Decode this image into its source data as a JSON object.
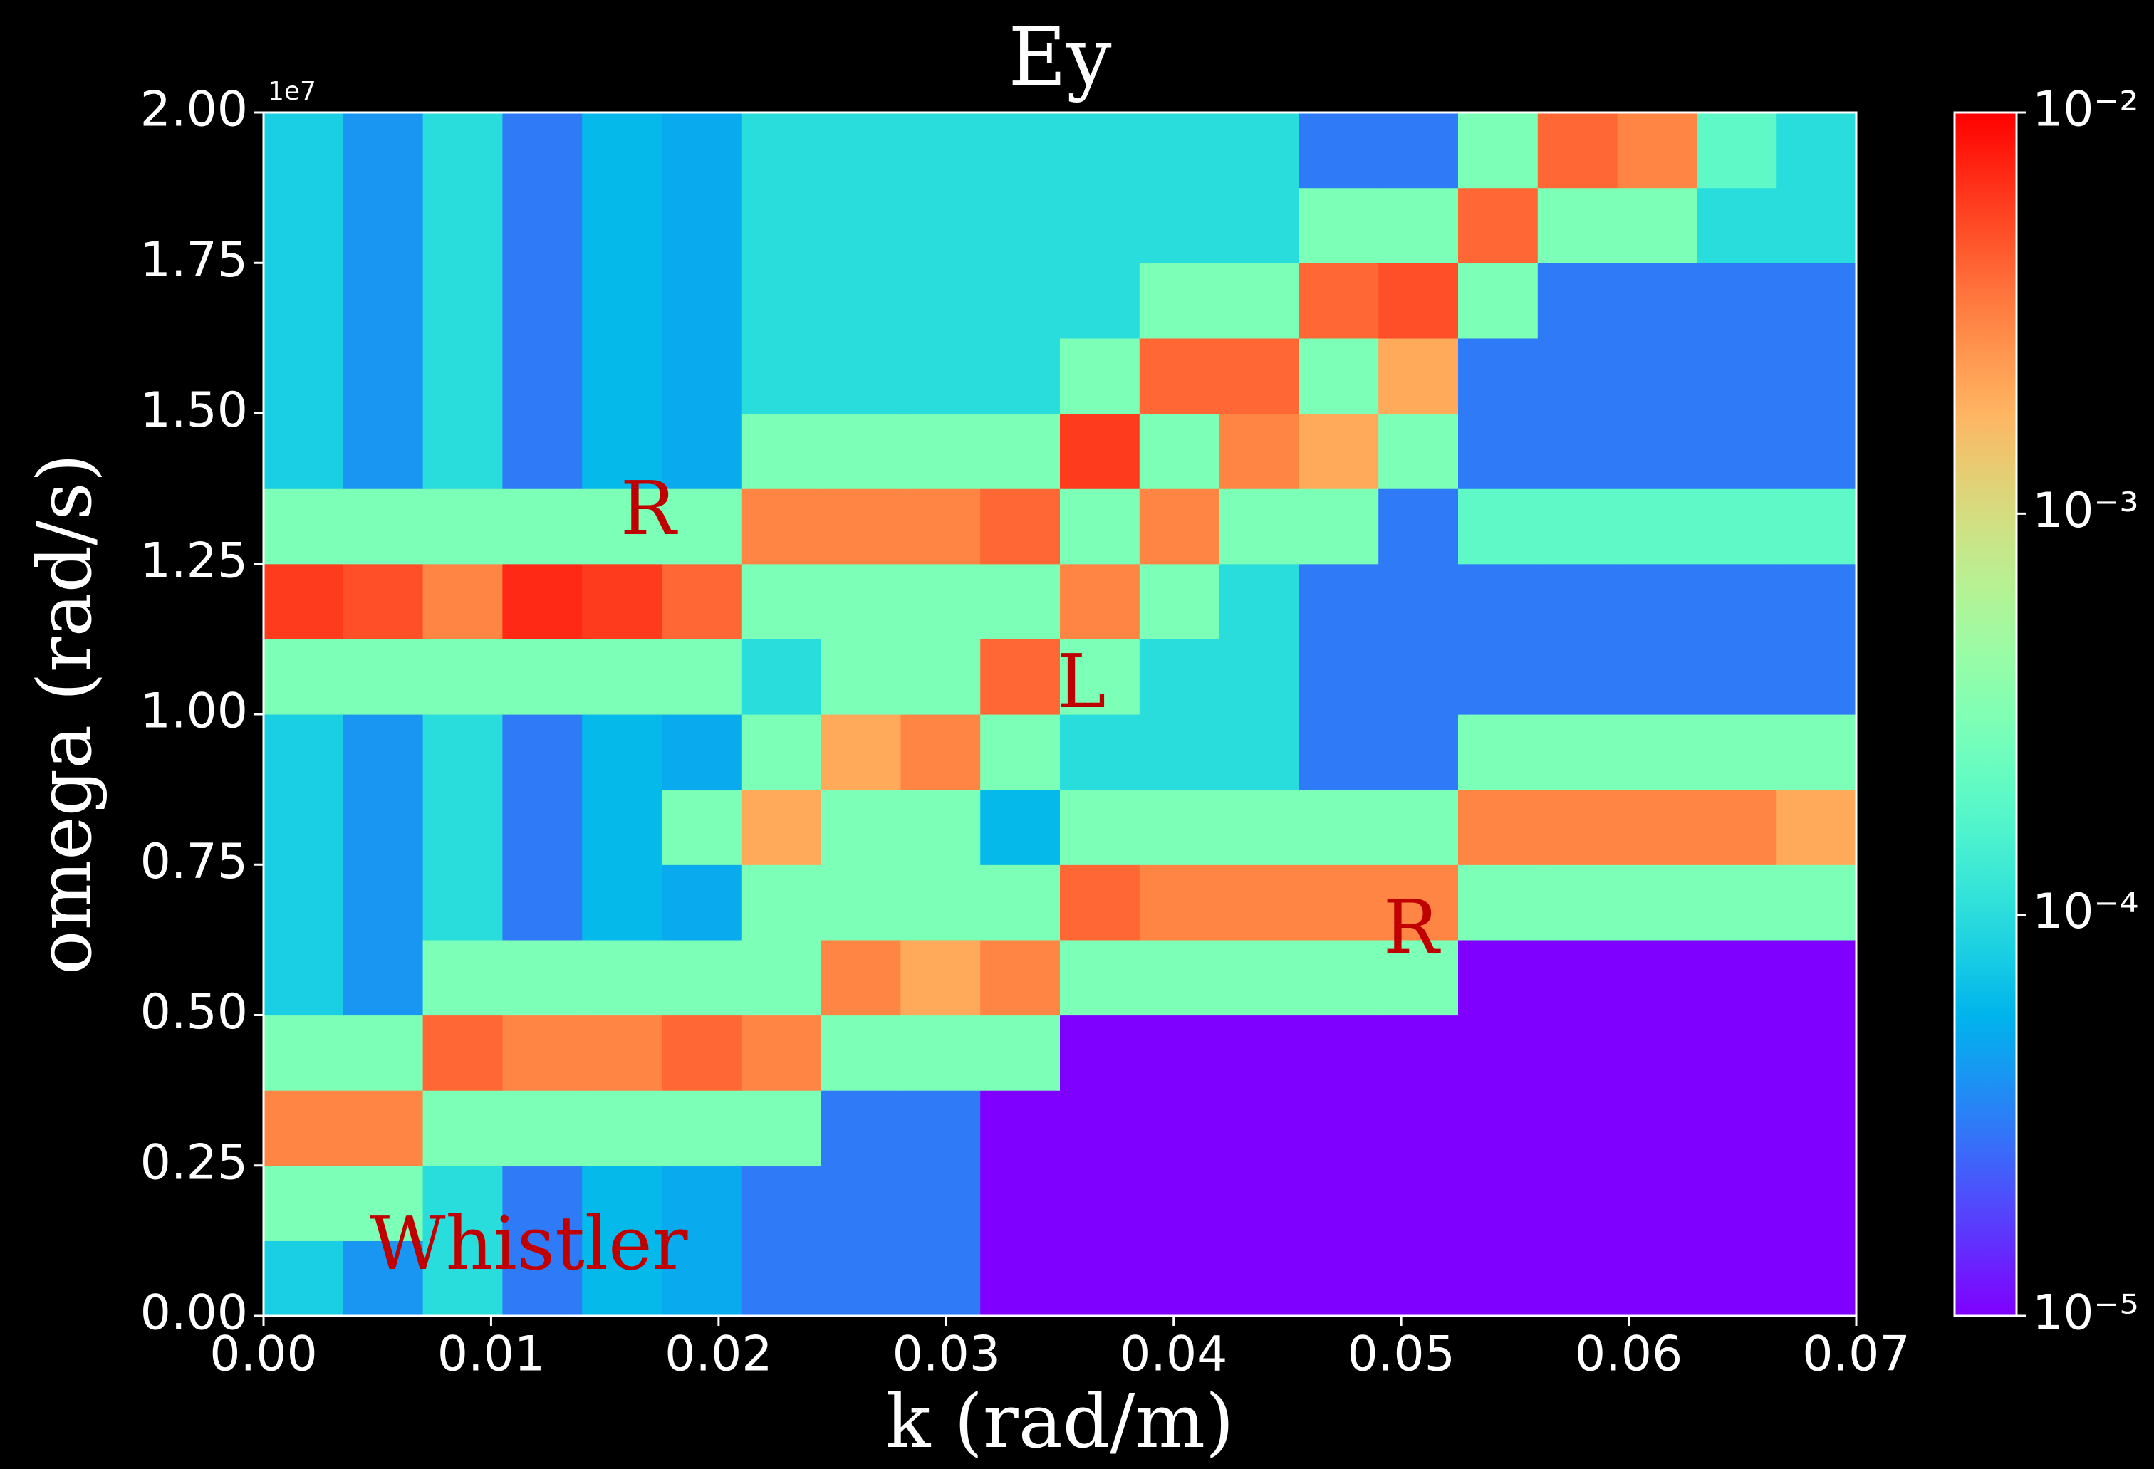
{
  "chart_data": {
    "type": "heatmap",
    "title": "Ey",
    "xlabel": "k (rad/m)",
    "ylabel": "omega (rad/s)",
    "y_offset_label": "1e7",
    "xlim": [
      0,
      0.07
    ],
    "ylim": [
      0,
      20000000
    ],
    "xticks": [
      {
        "value": 0,
        "label": "0.00"
      },
      0.01,
      0.02,
      0.03,
      0.04,
      0.05,
      0.06,
      0.07
    ],
    "yticks": [
      {
        "value": 0,
        "label": "0.00"
      },
      {
        "value": 2500000,
        "label": "0.25"
      },
      {
        "value": 5000000,
        "label": "0.50"
      },
      {
        "value": 7500000,
        "label": "0.75"
      },
      {
        "value": 10000000,
        "label": "1.00"
      },
      {
        "value": 12500000,
        "label": "1.25"
      },
      {
        "value": 15000000,
        "label": "1.50"
      },
      {
        "value": 17500000,
        "label": "1.75"
      },
      {
        "value": 20000000,
        "label": "2.00"
      }
    ],
    "colormap": "rainbow",
    "color_scale": "log",
    "clim": [
      1e-05,
      0.01
    ],
    "cticks": [
      {
        "value": 1e-05,
        "label": "10⁻⁵"
      },
      {
        "value": 0.0001,
        "label": "10⁻⁴"
      },
      {
        "value": 0.001,
        "label": "10⁻³"
      },
      {
        "value": 0.01,
        "label": "10⁻²"
      }
    ],
    "annotations": [
      "R",
      "L",
      "R",
      "Whistler"
    ],
    "annotation_color": "#c00000",
    "x_edges": [
      0,
      0.0035,
      0.007,
      0.0105,
      0.014,
      0.0175,
      0.021,
      0.0245,
      0.028,
      0.0315,
      0.035,
      0.0385,
      0.042,
      0.0455,
      0.049,
      0.0525,
      0.056,
      0.0595,
      0.063,
      0.0665,
      0.07
    ],
    "y_edges": [
      0,
      1250000,
      2500000,
      3750000,
      5000000,
      6250000,
      7500000,
      8750000,
      10000000,
      11250000,
      12500000,
      13750000,
      15000000,
      16250000,
      17500000,
      18750000,
      20000000
    ],
    "z": [
      [
        8e-05,
        4e-05,
        0.0001,
        3e-05,
        6e-05,
        5e-05,
        3e-05,
        3e-05,
        3e-05,
        1e-05,
        1e-05,
        1e-05,
        1e-05,
        1e-05,
        1e-05,
        1e-05,
        1e-05,
        1e-05,
        1e-05,
        1e-05
      ],
      [
        0.0003,
        0.0003,
        0.0001,
        3e-05,
        6e-05,
        5e-05,
        3e-05,
        3e-05,
        3e-05,
        1e-05,
        1e-05,
        1e-05,
        1e-05,
        1e-05,
        1e-05,
        1e-05,
        1e-05,
        1e-05,
        1e-05,
        1e-05
      ],
      [
        0.003,
        0.003,
        0.0003,
        0.0003,
        0.0003,
        0.0003,
        0.0003,
        3e-05,
        3e-05,
        1e-05,
        1e-05,
        1e-05,
        1e-05,
        1e-05,
        1e-05,
        1e-05,
        1e-05,
        1e-05,
        1e-05,
        1e-05
      ],
      [
        0.0003,
        0.0003,
        0.004,
        0.003,
        0.003,
        0.004,
        0.003,
        0.0003,
        0.0003,
        0.0003,
        1e-05,
        1e-05,
        1e-05,
        1e-05,
        1e-05,
        1e-05,
        1e-05,
        1e-05,
        1e-05,
        1e-05
      ],
      [
        8e-05,
        4e-05,
        0.0003,
        0.0003,
        0.0003,
        0.0003,
        0.0003,
        0.003,
        0.002,
        0.003,
        0.0003,
        0.0003,
        0.0003,
        0.0003,
        0.0003,
        1e-05,
        1e-05,
        1e-05,
        1e-05,
        1e-05
      ],
      [
        8e-05,
        4e-05,
        0.0001,
        3e-05,
        6e-05,
        5e-05,
        0.0003,
        0.0003,
        0.0003,
        0.0003,
        0.004,
        0.003,
        0.003,
        0.003,
        0.003,
        0.0003,
        0.0003,
        0.0003,
        0.0003,
        0.0003
      ],
      [
        8e-05,
        4e-05,
        0.0001,
        3e-05,
        6e-05,
        0.0003,
        0.002,
        0.0003,
        0.0003,
        6e-05,
        0.0003,
        0.0003,
        0.0003,
        0.0003,
        0.0003,
        0.003,
        0.003,
        0.003,
        0.003,
        0.002
      ],
      [
        8e-05,
        4e-05,
        0.0001,
        3e-05,
        6e-05,
        5e-05,
        0.0003,
        0.002,
        0.003,
        0.0003,
        0.0001,
        0.0001,
        0.0001,
        3e-05,
        3e-05,
        0.0003,
        0.0003,
        0.0003,
        0.0003,
        0.0003
      ],
      [
        0.0003,
        0.0003,
        0.0003,
        0.0003,
        0.0003,
        0.0003,
        0.0001,
        0.0003,
        0.0003,
        0.004,
        0.0003,
        0.0001,
        0.0001,
        3e-05,
        3e-05,
        3e-05,
        3e-05,
        3e-05,
        3e-05,
        3e-05
      ],
      [
        0.006,
        0.005,
        0.003,
        0.007,
        0.006,
        0.004,
        0.0003,
        0.0003,
        0.0003,
        0.0003,
        0.003,
        0.0003,
        0.0001,
        3e-05,
        3e-05,
        3e-05,
        3e-05,
        3e-05,
        3e-05,
        3e-05
      ],
      [
        0.0003,
        0.0003,
        0.0003,
        0.0003,
        0.0003,
        0.0003,
        0.003,
        0.003,
        0.003,
        0.004,
        0.0003,
        0.003,
        0.0003,
        0.0003,
        3e-05,
        0.0002,
        0.0002,
        0.0002,
        0.0002,
        0.0002
      ],
      [
        8e-05,
        4e-05,
        0.0001,
        3e-05,
        6e-05,
        5e-05,
        0.0003,
        0.0003,
        0.0003,
        0.0003,
        0.006,
        0.0003,
        0.003,
        0.002,
        0.0003,
        3e-05,
        3e-05,
        3e-05,
        3e-05,
        3e-05
      ],
      [
        8e-05,
        4e-05,
        0.0001,
        3e-05,
        6e-05,
        5e-05,
        0.0001,
        0.0001,
        0.0001,
        0.0001,
        0.0003,
        0.004,
        0.004,
        0.0003,
        0.002,
        3e-05,
        3e-05,
        3e-05,
        3e-05,
        3e-05
      ],
      [
        8e-05,
        4e-05,
        0.0001,
        3e-05,
        6e-05,
        5e-05,
        0.0001,
        0.0001,
        0.0001,
        0.0001,
        0.0001,
        0.0003,
        0.0003,
        0.004,
        0.005,
        0.0003,
        3e-05,
        3e-05,
        3e-05,
        3e-05
      ],
      [
        8e-05,
        4e-05,
        0.0001,
        3e-05,
        6e-05,
        5e-05,
        0.0001,
        0.0001,
        0.0001,
        0.0001,
        0.0001,
        0.0001,
        0.0001,
        0.0003,
        0.0003,
        0.004,
        0.0003,
        0.0003,
        0.0001,
        0.0001
      ],
      [
        8e-05,
        4e-05,
        0.0001,
        3e-05,
        6e-05,
        5e-05,
        0.0001,
        0.0001,
        0.0001,
        0.0001,
        0.0001,
        0.0001,
        0.0001,
        3e-05,
        3e-05,
        0.0003,
        0.004,
        0.003,
        0.0002,
        0.0001
      ]
    ]
  }
}
